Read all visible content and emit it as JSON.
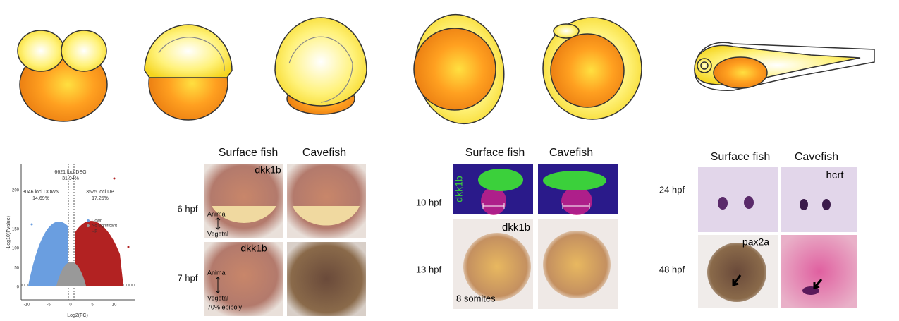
{
  "volcano": {
    "total": "6621 loci DEG",
    "total_pct": "31,94%",
    "down": "3046 loci DOWN",
    "down_pct": "14,69%",
    "up": "3575 loci UP",
    "up_pct": "17,25%",
    "y_label": "-Log10(Pvalue)",
    "x_label": "Log2(FC)",
    "x_ticks": [
      "-10",
      "-5",
      "0",
      "5",
      "10"
    ],
    "y_ticks": [
      "0",
      "50",
      "100",
      "150",
      "200"
    ],
    "legend": [
      "Down",
      "No significant",
      "Up"
    ]
  },
  "panel_a": {
    "columns": [
      "Surface fish",
      "Cavefish"
    ],
    "rows": [
      "6 hpf",
      "7 hpf"
    ],
    "gene_labels": [
      "dkk1b",
      "dkk1b"
    ],
    "axis_top": [
      "Animal",
      "Animal"
    ],
    "axis_bottom": [
      "Vegetal",
      "Vegetal"
    ],
    "note": "70% epiboly"
  },
  "panel_b": {
    "columns": [
      "Surface fish",
      "Cavefish"
    ],
    "rows": [
      "10 hpf",
      "13 hpf"
    ],
    "gene_labels": [
      "dkk1b",
      "dkk1b"
    ],
    "note": "8 somites"
  },
  "panel_c": {
    "columns": [
      "Surface fish",
      "Cavefish"
    ],
    "rows": [
      "24 hpf",
      "48 hpf"
    ],
    "gene_labels": [
      "hcrt",
      "pax2a"
    ]
  }
}
